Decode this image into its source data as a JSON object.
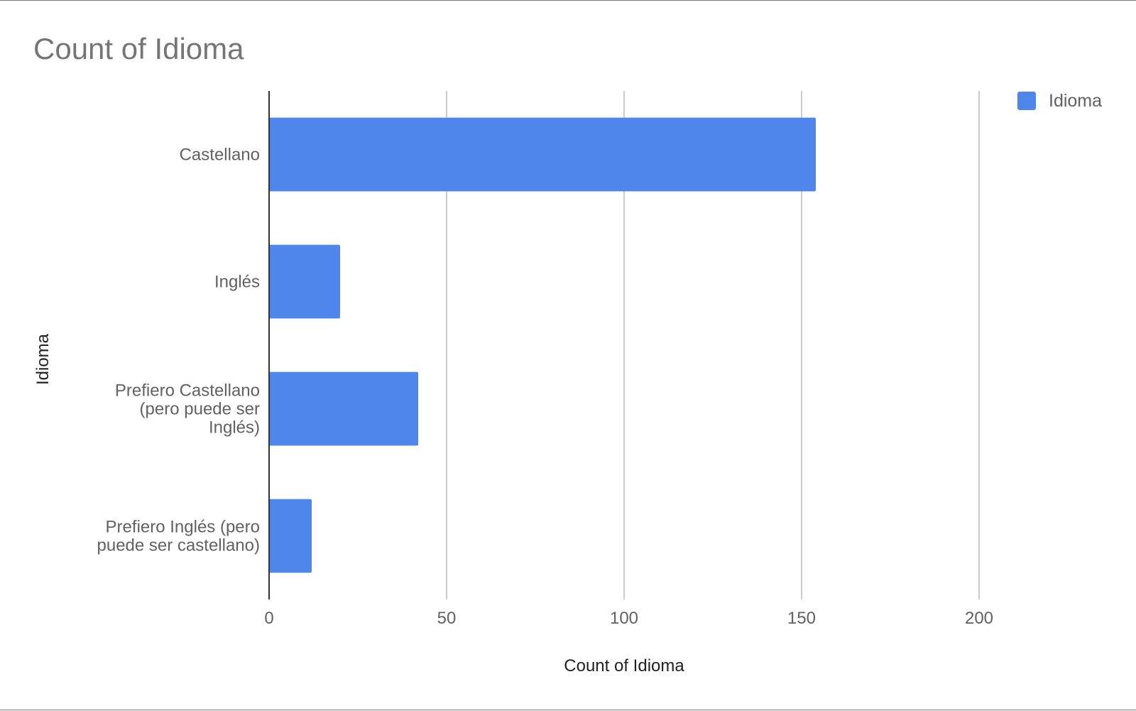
{
  "chart_data": {
    "type": "bar",
    "orientation": "horizontal",
    "title": "Count of Idioma",
    "xlabel": "Count of Idioma",
    "ylabel": "Idioma",
    "categories": [
      "Castellano",
      "Inglés",
      "Prefiero Castellano (pero puede ser Inglés)",
      "Prefiero Inglés (pero puede ser castellano)"
    ],
    "category_label_lines": [
      [
        "Castellano"
      ],
      [
        "Inglés"
      ],
      [
        "Prefiero Castellano",
        "(pero puede ser",
        "Inglés)"
      ],
      [
        "Prefiero Inglés (pero",
        "puede ser castellano)"
      ]
    ],
    "series": [
      {
        "name": "Idioma",
        "values": [
          154,
          20,
          42,
          12
        ],
        "color": "#4f86ec"
      }
    ],
    "xlim": [
      0,
      200
    ],
    "xticks": [
      0,
      50,
      100,
      150,
      200
    ],
    "xtick_labels": [
      "0",
      "50",
      "100",
      "150",
      "200"
    ],
    "grid": true,
    "legend_position": "top-right"
  }
}
